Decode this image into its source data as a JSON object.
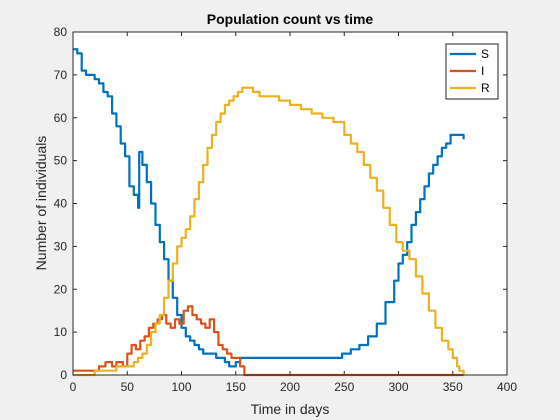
{
  "figure": {
    "background": "#f0f0f0",
    "axes_background": "#ffffff",
    "axis_color": "#262626"
  },
  "chart_data": {
    "type": "line",
    "title": "Population count vs time",
    "xlabel": "Time in days",
    "ylabel": "Number of individuals",
    "xlim": [
      0,
      400
    ],
    "ylim": [
      0,
      80
    ],
    "xticks": [
      0,
      50,
      100,
      150,
      200,
      250,
      300,
      350,
      400
    ],
    "yticks": [
      0,
      10,
      20,
      30,
      40,
      50,
      60,
      70,
      80
    ],
    "grid": false,
    "legend_position": "top-right",
    "series": [
      {
        "name": "S",
        "color": "#0072BD",
        "x": [
          0,
          4,
          8,
          12,
          16,
          20,
          24,
          28,
          32,
          36,
          40,
          44,
          48,
          52,
          56,
          60,
          61,
          64,
          68,
          72,
          76,
          80,
          84,
          88,
          92,
          96,
          100,
          104,
          108,
          112,
          116,
          120,
          124,
          128,
          132,
          136,
          140,
          144,
          148,
          150,
          154,
          160,
          200,
          240,
          248,
          256,
          264,
          272,
          280,
          288,
          296,
          300,
          304,
          308,
          312,
          316,
          320,
          324,
          328,
          332,
          336,
          340,
          344,
          348,
          352,
          356,
          360
        ],
        "y": [
          76,
          75,
          71,
          70,
          70,
          69,
          68,
          66,
          65,
          61,
          58,
          54,
          51,
          44,
          42,
          39,
          52,
          49,
          45,
          40,
          35,
          31,
          27,
          22,
          18,
          14,
          11,
          9,
          8,
          7,
          6,
          5,
          5,
          5,
          4,
          4,
          3,
          2,
          2,
          3,
          4,
          4,
          4,
          4,
          5,
          6,
          7,
          9,
          12,
          17,
          22,
          26,
          28,
          31,
          35,
          38,
          41,
          44,
          47,
          49,
          51,
          53,
          54,
          56,
          56,
          56,
          55
        ]
      },
      {
        "name": "I",
        "color": "#D95319",
        "x": [
          0,
          10,
          20,
          24,
          30,
          36,
          40,
          46,
          50,
          54,
          58,
          62,
          66,
          70,
          74,
          78,
          82,
          86,
          90,
          94,
          98,
          102,
          106,
          110,
          114,
          118,
          122,
          126,
          130,
          134,
          138,
          142,
          146,
          150,
          154,
          158,
          200,
          250,
          300,
          360
        ],
        "y": [
          1,
          1,
          1,
          2,
          3,
          2,
          3,
          2,
          5,
          7,
          6,
          8,
          9,
          11,
          12,
          13,
          14,
          12,
          11,
          13,
          12,
          15,
          16,
          14,
          13,
          12,
          11,
          13,
          10,
          7,
          6,
          5,
          4,
          4,
          2,
          0,
          0,
          0,
          0,
          0
        ]
      },
      {
        "name": "R",
        "color": "#EDB120",
        "x": [
          0,
          16,
          20,
          30,
          40,
          48,
          56,
          60,
          64,
          68,
          72,
          76,
          80,
          84,
          88,
          92,
          96,
          100,
          104,
          108,
          112,
          116,
          120,
          124,
          128,
          132,
          136,
          140,
          144,
          148,
          152,
          156,
          160,
          166,
          172,
          180,
          190,
          200,
          210,
          220,
          230,
          240,
          250,
          256,
          262,
          268,
          274,
          280,
          286,
          292,
          298,
          304,
          310,
          316,
          322,
          328,
          334,
          340,
          346,
          350,
          354,
          356,
          360
        ],
        "y": [
          0,
          0,
          1,
          1,
          2,
          2,
          3,
          4,
          5,
          7,
          10,
          12,
          14,
          18,
          22,
          26,
          30,
          32,
          34,
          37,
          41,
          45,
          49,
          53,
          56,
          59,
          61,
          63,
          64,
          65,
          66,
          67,
          67,
          66,
          65,
          65,
          64,
          63,
          62,
          61,
          60,
          59,
          56,
          54,
          52,
          49,
          46,
          43,
          39,
          35,
          31,
          29,
          27,
          23,
          19,
          15,
          11,
          8,
          6,
          4,
          2,
          1,
          0
        ]
      }
    ]
  }
}
